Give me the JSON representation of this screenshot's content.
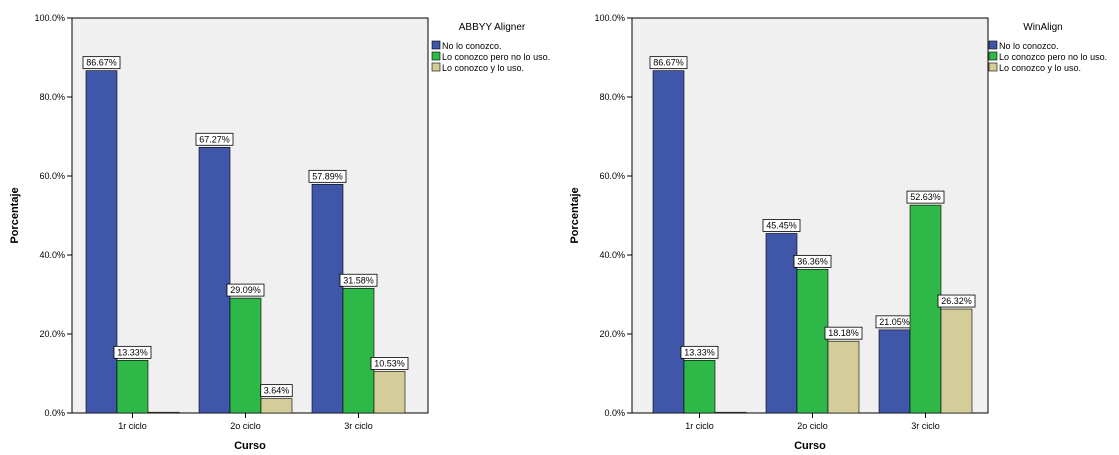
{
  "colors": {
    "series": [
      "#3F56A9",
      "#2EB848",
      "#D4CC99"
    ],
    "plot_bg": "#F0F0F0",
    "bar_edge": "#000000",
    "label_bg": "#ffffff"
  },
  "chart_data": [
    {
      "type": "bar",
      "title": "ABBYY Aligner",
      "categories": [
        "1r ciclo",
        "2o ciclo",
        "3r ciclo"
      ],
      "series": [
        {
          "name": "No lo conozco.",
          "values": [
            86.67,
            67.27,
            57.89
          ]
        },
        {
          "name": "Lo conozco pero no lo uso.",
          "values": [
            13.33,
            29.09,
            31.58
          ]
        },
        {
          "name": "Lo conozco y lo uso.",
          "values": [
            0,
            3.64,
            10.53
          ]
        }
      ],
      "value_labels": [
        [
          "86.67%",
          "67.27%",
          "57.89%"
        ],
        [
          "13.33%",
          "29.09%",
          "31.58%"
        ],
        [
          null,
          "3.64%",
          "10.53%"
        ]
      ],
      "xlabel": "Curso",
      "ylabel": "Porcentaje",
      "ylim": [
        0,
        100
      ],
      "yticks": [
        "0.0%",
        "20.0%",
        "40.0%",
        "60.0%",
        "80.0%",
        "100.0%"
      ],
      "legend": "top-right",
      "grid": false
    },
    {
      "type": "bar",
      "title": "WinAlign",
      "categories": [
        "1r ciclo",
        "2o ciclo",
        "3r ciclo"
      ],
      "series": [
        {
          "name": "No lo conozco.",
          "values": [
            86.67,
            45.45,
            21.05
          ]
        },
        {
          "name": "Lo conozco pero no lo uso.",
          "values": [
            13.33,
            36.36,
            52.63
          ]
        },
        {
          "name": "Lo conozco y lo uso.",
          "values": [
            0,
            18.18,
            26.32
          ]
        }
      ],
      "value_labels": [
        [
          "86.67%",
          "45.45%",
          "21.05%"
        ],
        [
          "13.33%",
          "36.36%",
          "52.63%"
        ],
        [
          null,
          "18.18%",
          "26.32%"
        ]
      ],
      "xlabel": "Curso",
      "ylabel": "Porcentaje",
      "ylim": [
        0,
        100
      ],
      "yticks": [
        "0.0%",
        "20.0%",
        "40.0%",
        "60.0%",
        "80.0%",
        "100.0%"
      ],
      "legend": "top-right",
      "grid": false
    }
  ]
}
